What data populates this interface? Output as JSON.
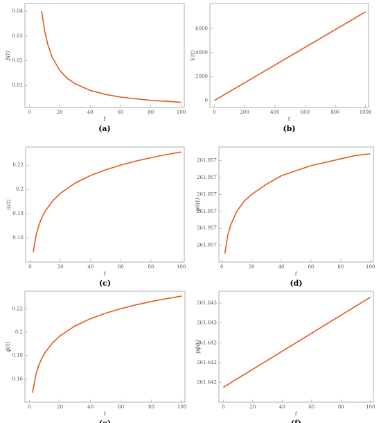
{
  "chart_data": [
    {
      "type": "line",
      "caption": "(a)",
      "x_label": "t",
      "y_label": "β(t)",
      "color": "#e2581c",
      "x": [
        8,
        10,
        12,
        15,
        20,
        25,
        30,
        40,
        50,
        60,
        70,
        80,
        90,
        100
      ],
      "values": [
        0.04,
        0.032,
        0.0267,
        0.0213,
        0.016,
        0.0128,
        0.0107,
        0.008,
        0.0064,
        0.0053,
        0.0046,
        0.004,
        0.0036,
        0.0032
      ],
      "xlim": [
        -3,
        102
      ],
      "ylim": [
        0.0011,
        0.0431
      ],
      "xticks": [
        0,
        20,
        40,
        60,
        80,
        100
      ],
      "yticks": [
        0.01,
        0.02,
        0.03,
        0.04
      ]
    },
    {
      "type": "line",
      "caption": "(b)",
      "x_label": "t",
      "y_label": "V(t)",
      "color": "#e2581c",
      "x": [
        0,
        1000
      ],
      "values": [
        0,
        7400
      ],
      "xlim": [
        -30,
        1020
      ],
      "ylim": [
        -580,
        8100
      ],
      "xticks": [
        0,
        200,
        400,
        600,
        800,
        1000
      ],
      "yticks": [
        0,
        2000,
        4000,
        6000
      ]
    },
    {
      "type": "line",
      "caption": "(c)",
      "x_label": "t",
      "y_label": "α(t)",
      "color": "#e2581c",
      "x": [
        2,
        4,
        6,
        8,
        10,
        15,
        20,
        30,
        40,
        50,
        60,
        70,
        80,
        90,
        100
      ],
      "values": [
        0.148,
        0.1627,
        0.1713,
        0.1774,
        0.1821,
        0.1907,
        0.1968,
        0.2054,
        0.2115,
        0.2162,
        0.2201,
        0.2234,
        0.2262,
        0.2287,
        0.2309
      ],
      "xlim": [
        -3,
        102
      ],
      "ylim": [
        0.14,
        0.235
      ],
      "xticks": [
        0,
        20,
        40,
        60,
        80,
        100
      ],
      "yticks": [
        0.16,
        0.18,
        0.2,
        0.22
      ]
    },
    {
      "type": "line",
      "caption": "(d)",
      "x_label": "t",
      "y_label": "pθ(t)",
      "color": "#e2581c",
      "x": [
        2,
        4,
        6,
        8,
        10,
        15,
        20,
        30,
        40,
        50,
        60,
        70,
        80,
        90,
        100
      ],
      "values": [
        261.95655,
        261.95666,
        261.95672,
        261.95676,
        261.9568,
        261.95686,
        261.9569,
        261.95696,
        261.95701,
        261.95704,
        261.95707,
        261.95709,
        261.95711,
        261.95713,
        261.95714
      ],
      "xlim": [
        -2,
        102
      ],
      "ylim": [
        261.9565,
        261.95718
      ],
      "xticks": [
        0,
        20,
        40,
        60,
        80,
        100
      ],
      "yticks": [
        {
          "value": 261.9566,
          "label": "261.957"
        },
        {
          "value": 261.9567,
          "label": "261.957"
        },
        {
          "value": 261.9568,
          "label": "261.957"
        },
        {
          "value": 261.9569,
          "label": "261.957"
        },
        {
          "value": 261.957,
          "label": "261.957"
        },
        {
          "value": 261.9571,
          "label": "261.957"
        }
      ]
    },
    {
      "type": "line",
      "caption": "(e)",
      "x_label": "t",
      "y_label": "ϕ(t)",
      "color": "#e2581c",
      "x": [
        2,
        4,
        6,
        8,
        10,
        15,
        20,
        30,
        40,
        50,
        60,
        70,
        80,
        90,
        100
      ],
      "values": [
        0.148,
        0.1627,
        0.1713,
        0.1774,
        0.1821,
        0.1907,
        0.1968,
        0.2054,
        0.2115,
        0.2162,
        0.2201,
        0.2234,
        0.2262,
        0.2287,
        0.2309
      ],
      "xlim": [
        -3,
        102
      ],
      "ylim": [
        0.14,
        0.235
      ],
      "xticks": [
        0,
        20,
        40,
        60,
        80,
        100
      ],
      "yticks": [
        0.16,
        0.18,
        0.2,
        0.22
      ]
    },
    {
      "type": "line",
      "caption": "(f)",
      "x_label": "t",
      "y_label": "pϕ(t)",
      "color": "#e2581c",
      "x": [
        0,
        100
      ],
      "values": [
        261.64195,
        261.64286
      ],
      "xlim": [
        -3,
        102
      ],
      "ylim": [
        261.6418,
        261.64292
      ],
      "xticks": [
        0,
        20,
        40,
        60,
        80,
        100
      ],
      "yticks": [
        {
          "value": 261.642,
          "label": "261.642"
        },
        {
          "value": 261.6422,
          "label": "261.642"
        },
        {
          "value": 261.6424,
          "label": "261.642"
        },
        {
          "value": 261.6426,
          "label": "261.643"
        },
        {
          "value": 261.6428,
          "label": "261.643"
        }
      ]
    }
  ]
}
